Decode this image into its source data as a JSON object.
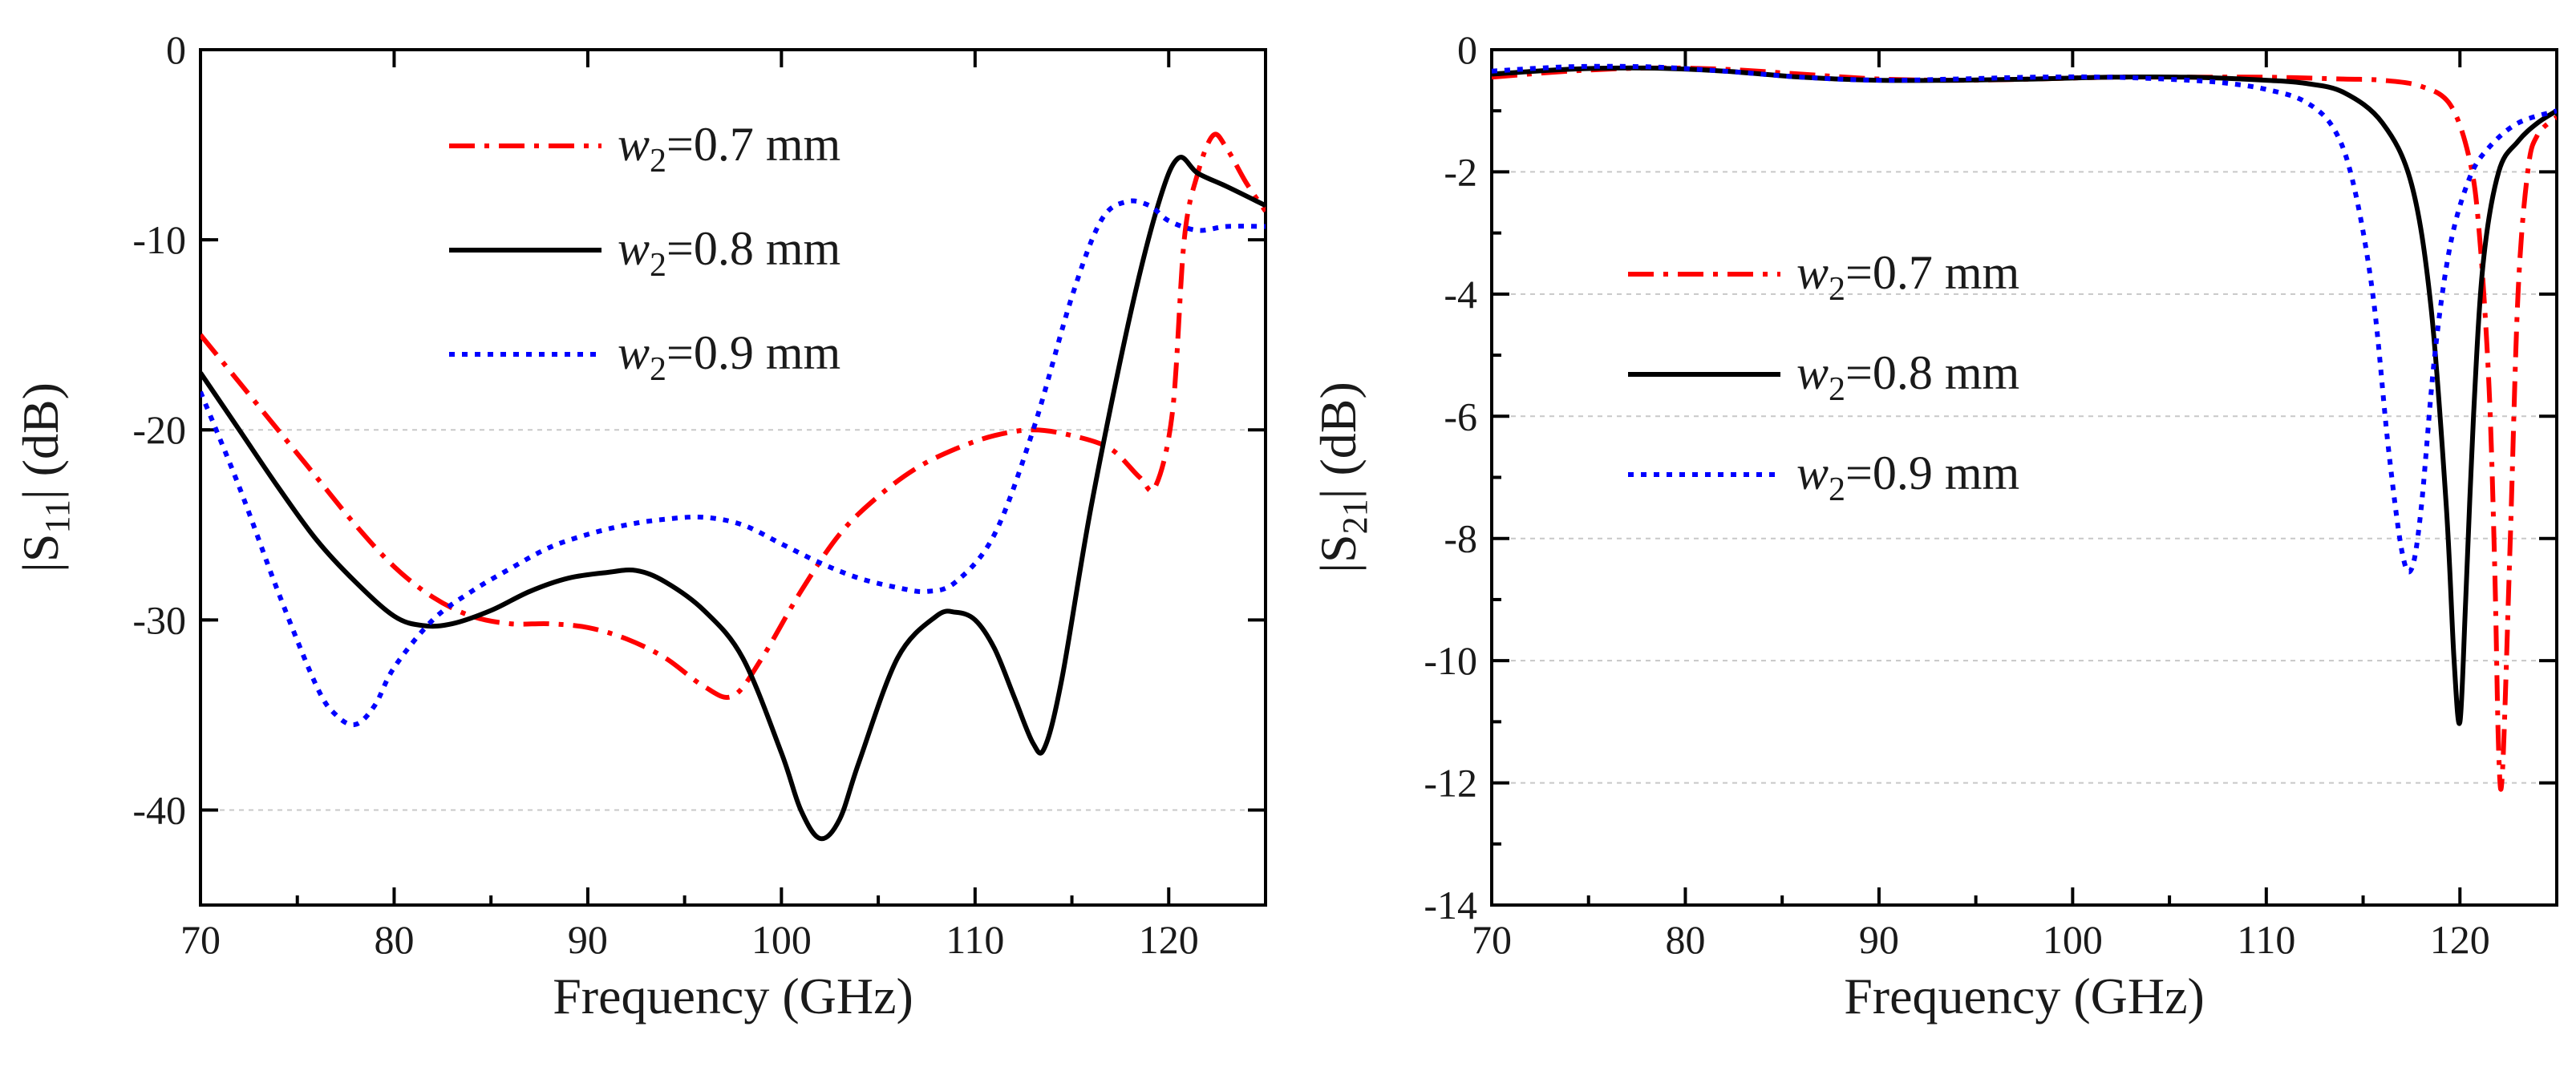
{
  "chart_data": [
    {
      "type": "line",
      "id": "s11",
      "title": "",
      "xlabel": "Frequency (GHz)",
      "ylabel": "|S11| (dB)",
      "ylabel_main": "|S",
      "ylabel_sub": "11",
      "ylabel_tail": "| (dB)",
      "xlim": [
        70,
        125
      ],
      "ylim": [
        -45,
        0
      ],
      "xticks": [
        70,
        80,
        90,
        100,
        110,
        120
      ],
      "yticks": [
        0,
        -10,
        -20,
        -30,
        -40
      ],
      "gridlines_y": [
        -20,
        -40
      ],
      "legend_position": "top-right",
      "series": [
        {
          "name": "w2=0.7 mm",
          "label_w": "w",
          "label_sub": "2",
          "label_rest": "=0.7 mm",
          "color": "#ff0000",
          "style": "dashdot",
          "x": [
            70,
            72,
            74,
            76,
            78,
            80,
            82,
            84,
            86,
            88,
            90,
            92,
            94,
            96,
            97.5,
            99,
            101,
            103,
            105,
            107,
            109,
            111,
            113,
            115,
            117,
            118.5,
            119.3,
            120.2,
            120.8,
            121.5,
            122.3,
            123,
            124,
            125
          ],
          "y": [
            -15,
            -17.5,
            -20,
            -22.5,
            -25,
            -27.2,
            -28.8,
            -29.8,
            -30.2,
            -30.2,
            -30.4,
            -31,
            -32,
            -33.5,
            -34,
            -32,
            -28.5,
            -25.5,
            -23.5,
            -22,
            -21,
            -20.3,
            -20,
            -20.3,
            -21,
            -22.5,
            -23,
            -19,
            -10,
            -6.5,
            -4.5,
            -5.2,
            -7,
            -8.5
          ]
        },
        {
          "name": "w2=0.8 mm",
          "label_w": "w",
          "label_sub": "2",
          "label_rest": "=0.8 mm",
          "color": "#000000",
          "style": "solid",
          "x": [
            70,
            72,
            74,
            76,
            78,
            80,
            81.5,
            83,
            85,
            87,
            89,
            91,
            92.5,
            94,
            96,
            98,
            100,
            101,
            102,
            103,
            104,
            106,
            108,
            109,
            110,
            111,
            112,
            113,
            113.6,
            114.5,
            116,
            118,
            119.5,
            120.5,
            121.5,
            123,
            125
          ],
          "y": [
            -17,
            -20,
            -23,
            -25.8,
            -28,
            -29.8,
            -30.3,
            -30.2,
            -29.5,
            -28.5,
            -27.8,
            -27.5,
            -27.4,
            -28,
            -29.5,
            -32,
            -37,
            -40,
            -41.5,
            -40.5,
            -37.5,
            -32,
            -29.8,
            -29.6,
            -30,
            -31.5,
            -34,
            -36.5,
            -36.7,
            -33,
            -24,
            -14,
            -8,
            -5.7,
            -6.5,
            -7.2,
            -8.2
          ]
        },
        {
          "name": "w2=0.9 mm",
          "label_w": "w",
          "label_sub": "2",
          "label_rest": "=0.9 mm",
          "color": "#0000ff",
          "style": "dotted",
          "x": [
            70,
            72,
            74,
            76,
            77,
            78,
            79,
            80,
            82,
            84,
            86,
            88,
            90,
            92,
            94,
            96,
            98,
            100,
            102,
            104,
            106,
            107.5,
            109,
            111,
            113,
            115,
            116.5,
            117.8,
            119,
            120,
            121.5,
            123,
            125
          ],
          "y": [
            -18,
            -23,
            -28.5,
            -33.5,
            -35,
            -35.5,
            -34.5,
            -32.5,
            -30,
            -28.5,
            -27.3,
            -26.2,
            -25.5,
            -25,
            -24.7,
            -24.6,
            -25,
            -26,
            -27,
            -27.8,
            -28.3,
            -28.5,
            -28,
            -25.5,
            -20,
            -13,
            -9,
            -8,
            -8.2,
            -9,
            -9.5,
            -9.3,
            -9.3
          ]
        }
      ]
    },
    {
      "type": "line",
      "id": "s21",
      "title": "",
      "xlabel": "Frequency (GHz)",
      "ylabel": "|S21| (dB)",
      "ylabel_main": "|S",
      "ylabel_sub": "21",
      "ylabel_tail": "| (dB)",
      "xlim": [
        70,
        125
      ],
      "ylim": [
        -14,
        0
      ],
      "xticks": [
        70,
        80,
        90,
        100,
        110,
        120
      ],
      "yticks": [
        0,
        -2,
        -4,
        -6,
        -8,
        -10,
        -12,
        -14
      ],
      "gridlines_y": [
        -2,
        -4,
        -6,
        -8,
        -10,
        -12
      ],
      "legend_position": "center-left",
      "series": [
        {
          "name": "w2=0.7 mm",
          "label_w": "w",
          "label_sub": "2",
          "label_rest": "=0.7 mm",
          "color": "#ff0000",
          "style": "dashdot",
          "x": [
            70,
            74,
            78,
            82,
            86,
            90,
            94,
            98,
            102,
            106,
            110,
            114,
            116,
            118,
            119.5,
            120.5,
            121,
            121.5,
            121.8,
            122,
            122.2,
            122.6,
            123,
            123.5,
            124,
            125
          ],
          "y": [
            -0.45,
            -0.35,
            -0.3,
            -0.32,
            -0.4,
            -0.48,
            -0.5,
            -0.48,
            -0.45,
            -0.45,
            -0.45,
            -0.48,
            -0.5,
            -0.6,
            -0.9,
            -1.8,
            -3,
            -5.5,
            -8.5,
            -11.5,
            -11.8,
            -8,
            -4,
            -2,
            -1.4,
            -1.1
          ]
        },
        {
          "name": "w2=0.8 mm",
          "label_w": "w",
          "label_sub": "2",
          "label_rest": "=0.8 mm",
          "color": "#000000",
          "style": "solid",
          "x": [
            70,
            74,
            78,
            82,
            86,
            90,
            94,
            98,
            102,
            106,
            110,
            112,
            114,
            116,
            117.5,
            118.5,
            119.3,
            119.7,
            120,
            120.3,
            120.7,
            121.2,
            122,
            123,
            124,
            125
          ],
          "y": [
            -0.4,
            -0.32,
            -0.3,
            -0.35,
            -0.45,
            -0.5,
            -0.5,
            -0.48,
            -0.45,
            -0.45,
            -0.5,
            -0.55,
            -0.7,
            -1.2,
            -2.2,
            -4.2,
            -7.5,
            -10,
            -11,
            -9,
            -6,
            -3.5,
            -2,
            -1.5,
            -1.2,
            -1
          ]
        },
        {
          "name": "w2=0.9 mm",
          "label_w": "w",
          "label_sub": "2",
          "label_rest": "=0.9 mm",
          "color": "#0000ff",
          "style": "dotted",
          "x": [
            70,
            74,
            78,
            82,
            86,
            90,
            94,
            98,
            102,
            106,
            108,
            110,
            112,
            113.5,
            114.5,
            115.5,
            116.3,
            117,
            117.5,
            118,
            118.7,
            119.5,
            120.5,
            121.5,
            123,
            125
          ],
          "y": [
            -0.35,
            -0.28,
            -0.28,
            -0.35,
            -0.45,
            -0.5,
            -0.48,
            -0.45,
            -0.45,
            -0.5,
            -0.55,
            -0.65,
            -0.85,
            -1.3,
            -2.2,
            -4,
            -6.5,
            -8.2,
            -8.5,
            -7.5,
            -5,
            -3.2,
            -2.1,
            -1.6,
            -1.2,
            -1
          ]
        }
      ]
    }
  ]
}
